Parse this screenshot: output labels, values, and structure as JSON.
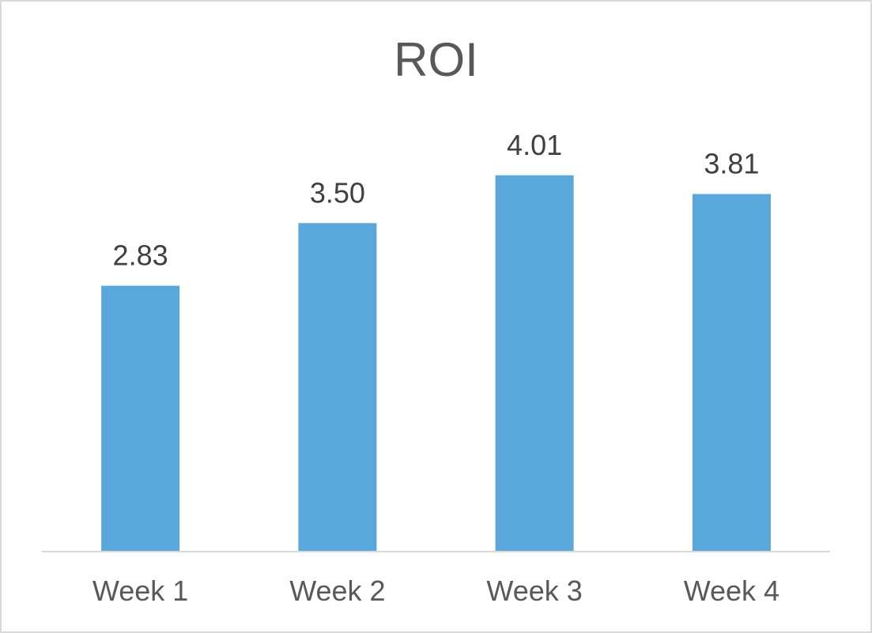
{
  "chart_data": {
    "type": "bar",
    "title": "ROI",
    "categories": [
      "Week 1",
      "Week 2",
      "Week 3",
      "Week 4"
    ],
    "values": [
      2.83,
      3.5,
      4.01,
      3.81
    ],
    "data_labels": [
      "2.83",
      "3.50",
      "4.01",
      "3.81"
    ],
    "ylim": [
      0,
      4.5
    ],
    "grid": false,
    "legend": "none",
    "bar_color": "#5aa8db"
  }
}
